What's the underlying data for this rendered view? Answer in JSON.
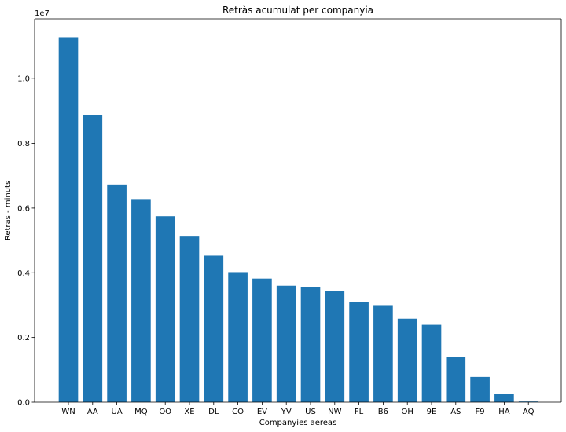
{
  "chart_data": {
    "type": "bar",
    "title": "Retràs acumulat per companyia",
    "xlabel": "Companyies aereas",
    "ylabel": "Retras - minuts",
    "y_offset_label": "1e7",
    "y_scale": 10000000,
    "ylim": [
      0,
      11850000
    ],
    "y_ticks": [
      0,
      2000000,
      4000000,
      6000000,
      8000000,
      10000000
    ],
    "y_tick_labels": [
      "0.0",
      "0.2",
      "0.4",
      "0.6",
      "0.8",
      "1.0"
    ],
    "grid": false,
    "bar_color": "#1f77b4",
    "categories": [
      "WN",
      "AA",
      "UA",
      "MQ",
      "OO",
      "XE",
      "DL",
      "CO",
      "EV",
      "YV",
      "US",
      "NW",
      "FL",
      "B6",
      "OH",
      "9E",
      "AS",
      "F9",
      "HA",
      "AQ"
    ],
    "values": [
      11280000,
      8880000,
      6730000,
      6280000,
      5750000,
      5120000,
      4530000,
      4020000,
      3820000,
      3600000,
      3560000,
      3430000,
      3090000,
      3000000,
      2580000,
      2390000,
      1400000,
      780000,
      260000,
      20000
    ]
  }
}
